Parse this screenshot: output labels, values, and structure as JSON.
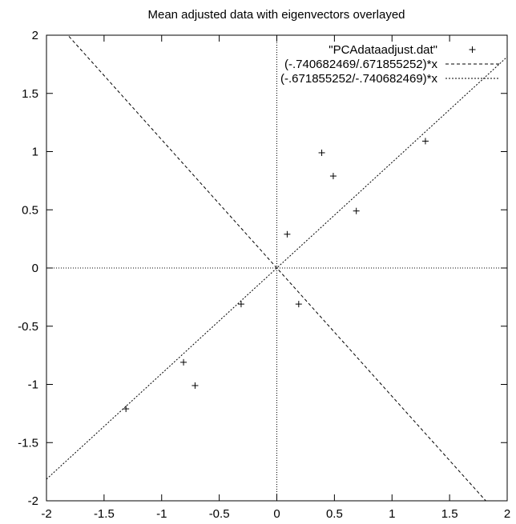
{
  "chart_data": {
    "type": "scatter",
    "title": "Mean adjusted data with eigenvectors overlayed",
    "xlabel": "",
    "ylabel": "",
    "xlim": [
      -2,
      2
    ],
    "ylim": [
      -2,
      2
    ],
    "x_ticks": [
      -2,
      -1.5,
      -1,
      -0.5,
      0,
      0.5,
      1,
      1.5,
      2
    ],
    "y_ticks": [
      -2,
      -1.5,
      -1,
      -0.5,
      0,
      0.5,
      1,
      1.5,
      2
    ],
    "x_tick_labels": [
      "-2",
      "-1.5",
      "-1",
      "-0.5",
      "0",
      "0.5",
      "1",
      "1.5",
      "2"
    ],
    "y_tick_labels": [
      "-2",
      "-1.5",
      "-1",
      "-0.5",
      "0",
      "0.5",
      "1",
      "1.5",
      "2"
    ],
    "zero_axes": true,
    "grid": false,
    "legend_position": "top-right",
    "series": [
      {
        "name": "\"PCAdataadjust.dat\"",
        "kind": "points",
        "marker": "plus",
        "x": [
          0.69,
          -1.31,
          0.39,
          0.09,
          1.29,
          0.49,
          0.19,
          -0.81,
          -0.31,
          -0.71
        ],
        "y": [
          0.49,
          -1.21,
          0.99,
          0.29,
          1.09,
          0.79,
          -0.31,
          -0.81,
          -0.31,
          -1.01
        ]
      },
      {
        "name": "(-.740682469/.671855252)*x",
        "kind": "line",
        "dash": "dashed",
        "slope": -1.10244
      },
      {
        "name": "(-.671855252/-.740682469)*x",
        "kind": "line",
        "dash": "dotted",
        "slope": 0.907075
      }
    ]
  }
}
